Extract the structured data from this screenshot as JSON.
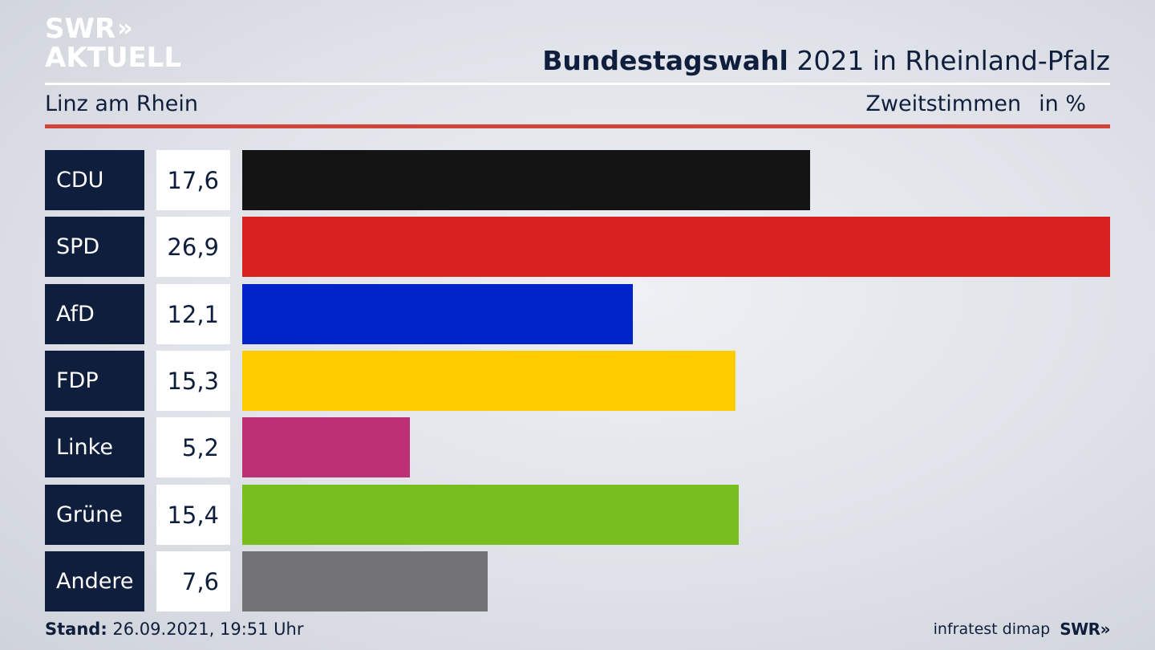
{
  "logo": {
    "line1": "SWR",
    "chevrons": "»",
    "line2": "AKTUELL"
  },
  "header": {
    "title_bold": "Bundestagswahl",
    "title_rest": " 2021 in Rheinland-Pfalz",
    "subtitle_left": "Linz am Rhein",
    "subtitle_right_1": "Zweitstimmen",
    "subtitle_right_2": "in %"
  },
  "chart_data": {
    "type": "bar",
    "orientation": "horizontal",
    "categories": [
      "CDU",
      "SPD",
      "AfD",
      "FDP",
      "Linke",
      "Grüne",
      "Andere"
    ],
    "values": [
      17.6,
      26.9,
      12.1,
      15.3,
      5.2,
      15.4,
      7.6
    ],
    "value_labels": [
      "17,6",
      "26,9",
      "12,1",
      "15,3",
      "5,2",
      "15,4",
      "7,6"
    ],
    "colors": [
      "#141414",
      "#d72121",
      "#0024c9",
      "#ffcc00",
      "#be3075",
      "#78be1e",
      "#737375"
    ],
    "xlim": [
      0,
      26.9
    ],
    "grid": false
  },
  "footer": {
    "stand_label": "Stand:",
    "stand_value": " 26.09.2021, 19:51 Uhr",
    "source": "infratest dimap",
    "brand": "SWR»"
  },
  "colors": {
    "navy": "#0f1e3c",
    "accent_red": "#d0453b"
  }
}
